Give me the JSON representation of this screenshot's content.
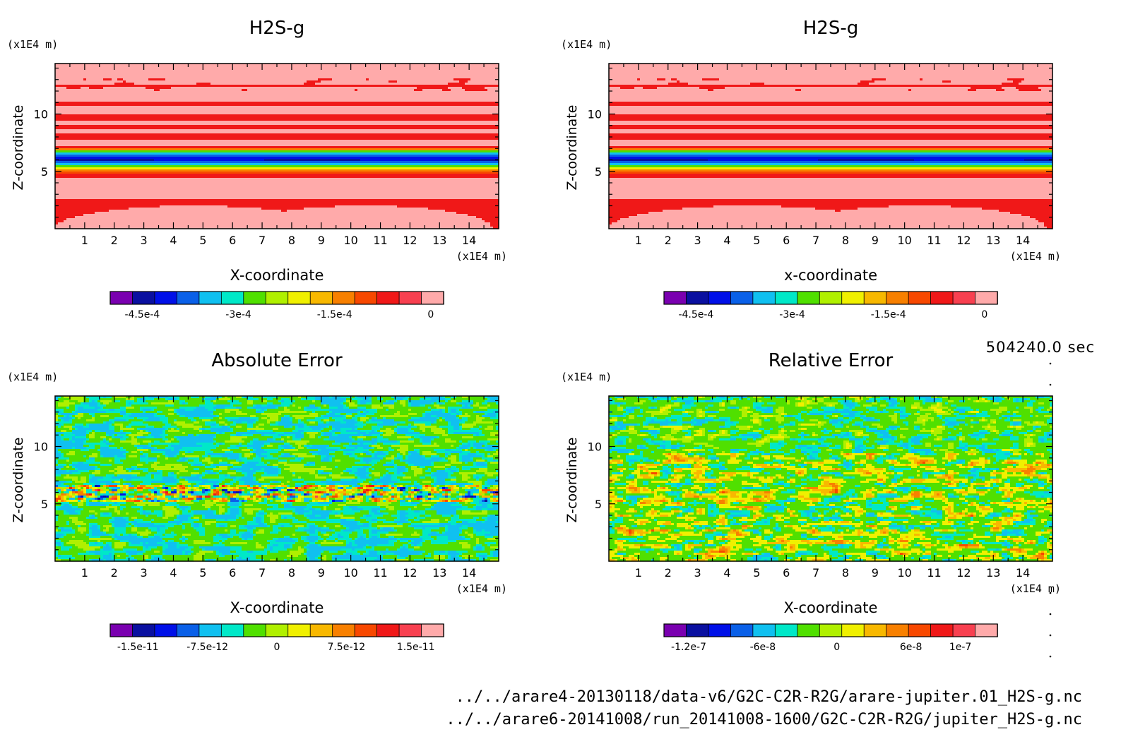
{
  "figure": {
    "time_label": "504240.0 sec",
    "files": [
      "../../arare4-20130118/data-v6/G2C-C2R-R2G/arare-jupiter.01_H2S-g.nc",
      "../../arare6-20141008/run_20141008-1600/G2C-C2R-R2G/jupiter_H2S-g.nc"
    ]
  },
  "chart_data": [
    {
      "type": "heatmap",
      "title": "H2S-g",
      "xlabel": "X-coordinate",
      "ylabel": "Z-coordinate",
      "x_unit": "(x1E4 m)",
      "y_unit": "(x1E4 m)",
      "xlim": [
        0,
        15
      ],
      "ylim": [
        0,
        14.4
      ],
      "x_ticks": [
        1,
        2,
        3,
        4,
        5,
        6,
        7,
        8,
        9,
        10,
        11,
        12,
        13,
        14
      ],
      "y_ticks": [
        5,
        10
      ],
      "colorbar": {
        "range": [
          -0.0005,
          2e-05
        ],
        "labels": [
          {
            "v": -0.00045,
            "t": "-4.5e-4"
          },
          {
            "v": -0.0003,
            "t": "-3e-4"
          },
          {
            "v": -0.00015,
            "t": "-1.5e-4"
          },
          {
            "v": 0,
            "t": "0"
          }
        ]
      },
      "pattern": "h2s"
    },
    {
      "type": "heatmap",
      "title": "H2S-g",
      "xlabel": "x-coordinate",
      "ylabel": "Z-coordinate",
      "x_unit": "(x1E4 m)",
      "y_unit": "(x1E4 m)",
      "xlim": [
        0,
        15
      ],
      "ylim": [
        0,
        14.4
      ],
      "x_ticks": [
        1,
        2,
        3,
        4,
        5,
        6,
        7,
        8,
        9,
        10,
        11,
        12,
        13,
        14
      ],
      "y_ticks": [
        5,
        10
      ],
      "colorbar": {
        "range": [
          -0.0005,
          2e-05
        ],
        "labels": [
          {
            "v": -0.00045,
            "t": "-4.5e-4"
          },
          {
            "v": -0.0003,
            "t": "-3e-4"
          },
          {
            "v": -0.00015,
            "t": "-1.5e-4"
          },
          {
            "v": 0,
            "t": "0"
          }
        ]
      },
      "pattern": "h2s"
    },
    {
      "type": "heatmap",
      "title": "Absolute Error",
      "xlabel": "X-coordinate",
      "ylabel": "Z-coordinate",
      "x_unit": "(x1E4 m)",
      "y_unit": "(x1E4 m)",
      "xlim": [
        0,
        15
      ],
      "ylim": [
        0,
        14.4
      ],
      "x_ticks": [
        1,
        2,
        3,
        4,
        5,
        6,
        7,
        8,
        9,
        10,
        11,
        12,
        13,
        14
      ],
      "y_ticks": [
        5,
        10
      ],
      "colorbar": {
        "range": [
          -1.8e-11,
          1.8e-11
        ],
        "labels": [
          {
            "v": -1.5e-11,
            "t": "-1.5e-11"
          },
          {
            "v": -7.5e-12,
            "t": "-7.5e-12"
          },
          {
            "v": 0,
            "t": "0"
          },
          {
            "v": 7.5e-12,
            "t": "7.5e-12"
          },
          {
            "v": 1.5e-11,
            "t": "1.5e-11"
          }
        ]
      },
      "pattern": "abs"
    },
    {
      "type": "heatmap",
      "title": "Relative Error",
      "xlabel": "X-coordinate",
      "ylabel": "Z-coordinate",
      "x_unit": "(x1E4 m)",
      "y_unit": "(x1E4 m)",
      "xlim": [
        0,
        15
      ],
      "ylim": [
        0,
        14.4
      ],
      "x_ticks": [
        1,
        2,
        3,
        4,
        5,
        6,
        7,
        8,
        9,
        10,
        11,
        12,
        13,
        14
      ],
      "y_ticks": [
        5,
        10
      ],
      "colorbar": {
        "range": [
          -1.4e-07,
          1.3e-07
        ],
        "labels": [
          {
            "v": -1.2e-07,
            "t": "-1.2e-7"
          },
          {
            "v": -6e-08,
            "t": "-6e-8"
          },
          {
            "v": 0,
            "t": "0"
          },
          {
            "v": 6e-08,
            "t": "6e-8"
          },
          {
            "v": 1e-07,
            "t": "1e-7"
          }
        ]
      },
      "pattern": "rel"
    }
  ],
  "colormap": [
    "#7a00b0",
    "#0a10a0",
    "#0010e8",
    "#0a60e8",
    "#10c0f0",
    "#00e8c8",
    "#50e000",
    "#b0f000",
    "#f0f000",
    "#f8b800",
    "#f88000",
    "#f84800",
    "#f01818",
    "#f84050",
    "#ffaaaa"
  ]
}
